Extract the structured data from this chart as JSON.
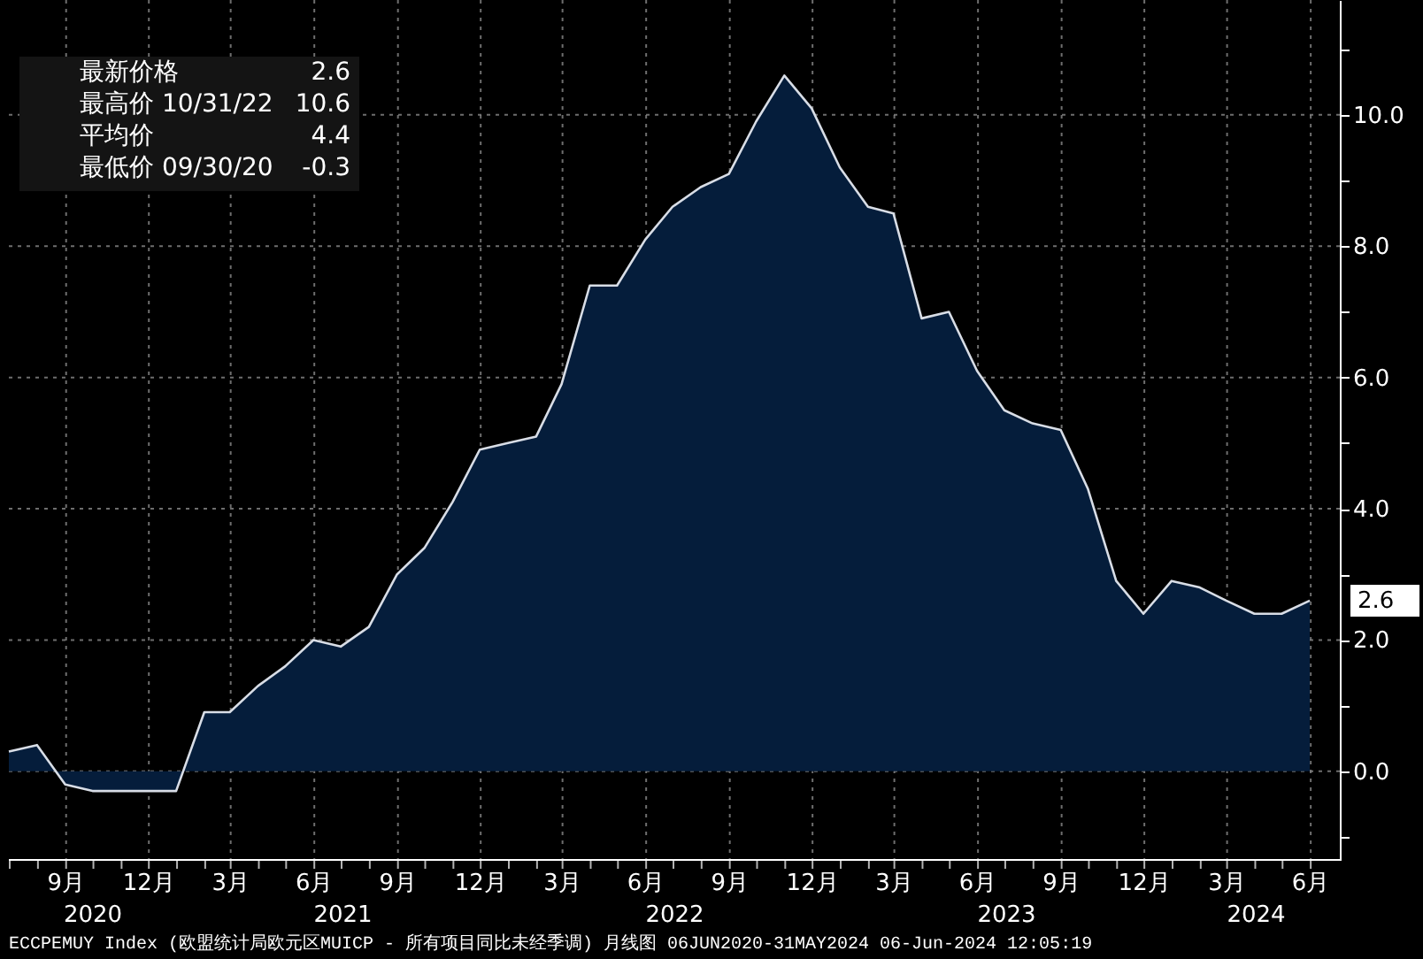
{
  "chart_data": {
    "type": "area",
    "x": [
      "2020-06-30",
      "2020-07-31",
      "2020-08-31",
      "2020-09-30",
      "2020-10-31",
      "2020-11-30",
      "2020-12-31",
      "2021-01-31",
      "2021-02-28",
      "2021-03-31",
      "2021-04-30",
      "2021-05-31",
      "2021-06-30",
      "2021-07-31",
      "2021-08-31",
      "2021-09-30",
      "2021-10-31",
      "2021-11-30",
      "2021-12-31",
      "2022-01-31",
      "2022-02-28",
      "2022-03-31",
      "2022-04-30",
      "2022-05-31",
      "2022-06-30",
      "2022-07-31",
      "2022-08-31",
      "2022-09-30",
      "2022-10-31",
      "2022-11-30",
      "2022-12-31",
      "2023-01-31",
      "2023-02-28",
      "2023-03-31",
      "2023-04-30",
      "2023-05-31",
      "2023-06-30",
      "2023-07-31",
      "2023-08-31",
      "2023-09-30",
      "2023-10-31",
      "2023-11-30",
      "2023-12-31",
      "2024-01-31",
      "2024-02-29",
      "2024-03-31",
      "2024-04-30",
      "2024-05-31"
    ],
    "series": [
      {
        "color": "#051d3b",
        "values": [
          0.3,
          0.4,
          -0.2,
          -0.3,
          -0.3,
          -0.3,
          -0.3,
          0.9,
          0.9,
          1.3,
          1.6,
          2.0,
          1.9,
          2.2,
          3.0,
          3.4,
          4.1,
          4.9,
          5.0,
          5.1,
          5.9,
          7.4,
          7.4,
          8.1,
          8.6,
          8.9,
          9.1,
          9.9,
          10.6,
          10.1,
          9.2,
          8.6,
          8.5,
          6.9,
          7.0,
          6.1,
          5.5,
          5.3,
          5.2,
          4.3,
          2.9,
          2.4,
          2.9,
          2.8,
          2.6,
          2.4,
          2.4,
          2.6
        ]
      }
    ],
    "xlim": [
      "2020-06-30",
      "2024-07-03"
    ],
    "xticks": [
      {
        "value": "2020-07-01",
        "label": null
      },
      {
        "value": "2020-08-01",
        "label": null
      },
      {
        "value": "2020-09-01",
        "label": "9月"
      },
      {
        "value": "2020-10-01",
        "label": null
      },
      {
        "value": "2020-11-01",
        "label": null
      },
      {
        "value": "2020-12-01",
        "label": "12月"
      },
      {
        "value": "2021-01-01",
        "label": null
      },
      {
        "value": "2021-02-01",
        "label": null
      },
      {
        "value": "2021-03-01",
        "label": "3月"
      },
      {
        "value": "2021-04-01",
        "label": null
      },
      {
        "value": "2021-05-01",
        "label": null
      },
      {
        "value": "2021-06-01",
        "label": "6月"
      },
      {
        "value": "2021-07-01",
        "label": null
      },
      {
        "value": "2021-08-01",
        "label": null
      },
      {
        "value": "2021-09-01",
        "label": "9月"
      },
      {
        "value": "2021-10-01",
        "label": null
      },
      {
        "value": "2021-11-01",
        "label": null
      },
      {
        "value": "2021-12-01",
        "label": "12月"
      },
      {
        "value": "2022-01-01",
        "label": null
      },
      {
        "value": "2022-02-01",
        "label": null
      },
      {
        "value": "2022-03-01",
        "label": "3月"
      },
      {
        "value": "2022-04-01",
        "label": null
      },
      {
        "value": "2022-05-01",
        "label": null
      },
      {
        "value": "2022-06-01",
        "label": "6月"
      },
      {
        "value": "2022-07-01",
        "label": null
      },
      {
        "value": "2022-08-01",
        "label": null
      },
      {
        "value": "2022-09-01",
        "label": "9月"
      },
      {
        "value": "2022-10-01",
        "label": null
      },
      {
        "value": "2022-11-01",
        "label": null
      },
      {
        "value": "2022-12-01",
        "label": "12月"
      },
      {
        "value": "2023-01-01",
        "label": null
      },
      {
        "value": "2023-02-01",
        "label": null
      },
      {
        "value": "2023-03-01",
        "label": "3月"
      },
      {
        "value": "2023-04-01",
        "label": null
      },
      {
        "value": "2023-05-01",
        "label": null
      },
      {
        "value": "2023-06-01",
        "label": "6月"
      },
      {
        "value": "2023-07-01",
        "label": null
      },
      {
        "value": "2023-08-01",
        "label": null
      },
      {
        "value": "2023-09-01",
        "label": "9月"
      },
      {
        "value": "2023-10-01",
        "label": null
      },
      {
        "value": "2023-11-01",
        "label": null
      },
      {
        "value": "2023-12-01",
        "label": "12月"
      },
      {
        "value": "2024-01-01",
        "label": null
      },
      {
        "value": "2024-02-01",
        "label": null
      },
      {
        "value": "2024-03-01",
        "label": "3月"
      },
      {
        "value": "2024-04-01",
        "label": null
      },
      {
        "value": "2024-05-01",
        "label": null
      },
      {
        "value": "2024-06-01",
        "label": "6月"
      }
    ],
    "ylim": [
      -1.35,
      11.75
    ],
    "yticks": [
      {
        "value": -1,
        "label": null
      },
      {
        "value": 0,
        "label": "0.0"
      },
      {
        "value": 1,
        "label": null
      },
      {
        "value": 2,
        "label": "2.0"
      },
      {
        "value": 3,
        "label": null
      },
      {
        "value": 4,
        "label": "4.0"
      },
      {
        "value": 5,
        "label": null
      },
      {
        "value": 6,
        "label": "6.0"
      },
      {
        "value": 7,
        "label": null
      },
      {
        "value": 8,
        "label": "8.0"
      },
      {
        "value": 9,
        "label": null
      },
      {
        "value": 10,
        "label": "10.0"
      },
      {
        "value": 11,
        "label": null
      }
    ],
    "grid": true,
    "annotations": [
      "最新价格",
      "2.6",
      "最高价 10/31/22",
      "10.6",
      "平均价",
      "4.4",
      "最低价 09/30/20",
      "-0.3",
      "2020",
      "2021",
      "2022",
      "2023",
      "2024",
      "2.6",
      "ECCPEMUY Index (欧盟统计局欧元区MUICP - 所有项目同比未经季调) 月线图 06JUN2020-31MAY2024 06-Jun-2024 12:05:19"
    ]
  }
}
